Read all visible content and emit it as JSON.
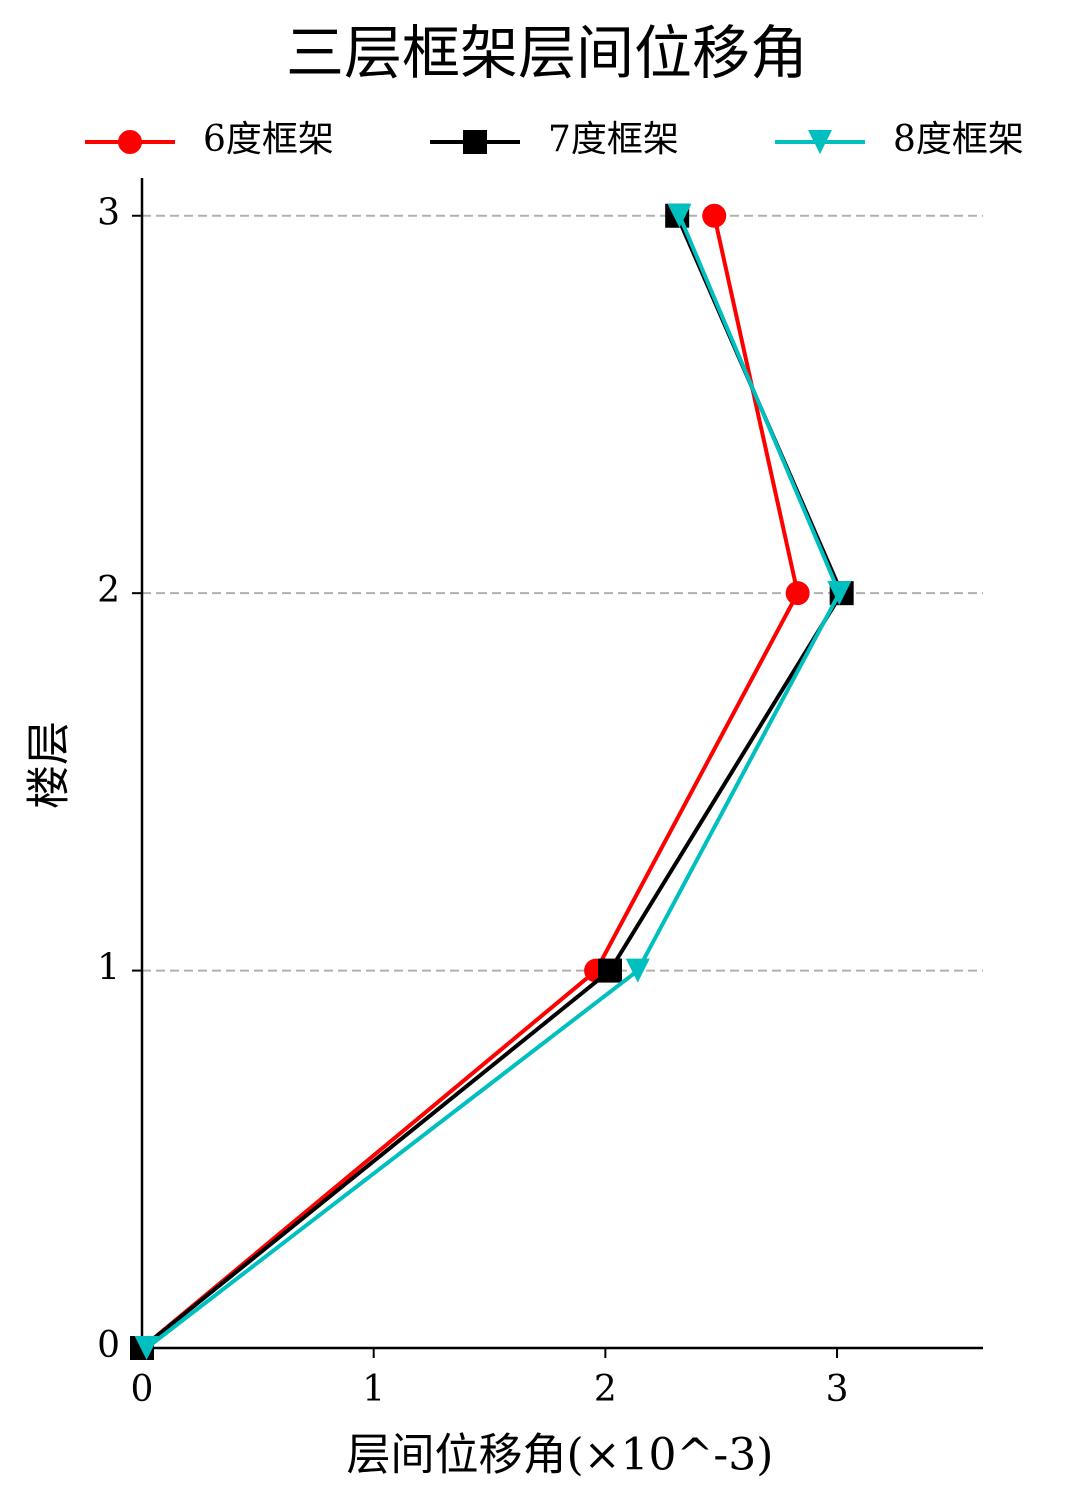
{
  "chart_data": {
    "type": "line",
    "title": "三层框架层间位移角",
    "x_label": "层间位移角(×10^-3)",
    "y_label": "楼层",
    "xlim": [
      0,
      3.63
    ],
    "xticks": [
      0,
      1,
      2,
      3
    ],
    "ylim": [
      0,
      3.1
    ],
    "yticks": [
      0,
      1,
      2,
      3
    ],
    "grid": true,
    "legend": "top",
    "series": [
      {
        "name": "6度框架",
        "color": "#ff0000",
        "marker": "circle",
        "x": [
          0,
          1.96,
          2.83,
          2.47
        ],
        "values": [
          0,
          1,
          2,
          3
        ]
      },
      {
        "name": "7度框架",
        "color": "#000000",
        "marker": "square",
        "x": [
          0,
          2.02,
          3.02,
          2.31
        ],
        "values": [
          0,
          1,
          2,
          3
        ]
      },
      {
        "name": "8度框架",
        "color": "#00bfbf",
        "marker": "triangle-down",
        "x": [
          0.02,
          2.14,
          3.01,
          2.32
        ],
        "values": [
          0,
          1,
          2,
          3
        ]
      }
    ]
  }
}
